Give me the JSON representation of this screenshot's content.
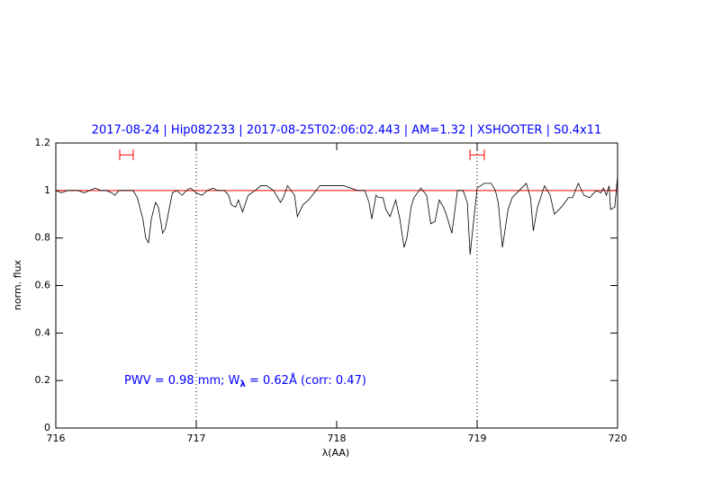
{
  "chart_data": {
    "type": "line",
    "title": "2017-08-24 | Hip082233 | 2017-08-25T02:06:02.443 | AM=1.32 | XSHOOTER | S0.4x11",
    "xlabel": "λ(AA)",
    "ylabel": "norm. flux",
    "annotation": [
      "PWV = 0.98 mm; W",
      "λ",
      " = 0.62Å (corr: 0.47)"
    ],
    "title_color": "#0000ff",
    "x": [
      716.0,
      716.04,
      716.08,
      716.12,
      716.16,
      716.2,
      716.24,
      716.28,
      716.32,
      716.36,
      716.4,
      716.42,
      716.45,
      716.5,
      716.55,
      716.58,
      716.62,
      716.64,
      716.66,
      716.68,
      716.71,
      716.73,
      716.75,
      716.76,
      716.78,
      716.8,
      716.83,
      716.86,
      716.9,
      716.93,
      716.96,
      717.0,
      717.04,
      717.08,
      717.12,
      717.15,
      717.2,
      717.23,
      717.25,
      717.28,
      717.3,
      717.33,
      717.37,
      717.42,
      717.46,
      717.5,
      717.55,
      717.58,
      717.6,
      717.62,
      717.65,
      717.7,
      717.72,
      717.76,
      717.8,
      717.84,
      717.88,
      717.95,
      718.0,
      718.05,
      718.1,
      718.15,
      718.2,
      718.23,
      718.25,
      718.28,
      718.3,
      718.33,
      718.35,
      718.38,
      718.42,
      718.45,
      718.48,
      718.5,
      718.53,
      718.55,
      718.6,
      718.64,
      718.67,
      718.7,
      718.73,
      718.76,
      718.78,
      718.82,
      718.86,
      718.9,
      718.93,
      718.95,
      718.98,
      719.0,
      719.05,
      719.1,
      719.13,
      719.15,
      719.18,
      719.22,
      719.25,
      719.3,
      719.35,
      719.38,
      719.4,
      719.43,
      719.48,
      719.52,
      719.55,
      719.6,
      719.65,
      719.68,
      719.72,
      719.76,
      719.8,
      719.85,
      719.88,
      719.9,
      719.92,
      719.94,
      719.95,
      719.98,
      720.0
    ],
    "values": [
      1.0,
      0.99,
      1.0,
      1.0,
      1.0,
      0.99,
      1.0,
      1.01,
      1.0,
      1.0,
      0.99,
      0.98,
      1.0,
      1.0,
      1.0,
      0.97,
      0.88,
      0.8,
      0.78,
      0.88,
      0.95,
      0.93,
      0.86,
      0.82,
      0.84,
      0.9,
      0.99,
      1.0,
      0.98,
      1.0,
      1.01,
      0.99,
      0.98,
      1.0,
      1.01,
      1.0,
      1.0,
      0.98,
      0.94,
      0.93,
      0.96,
      0.91,
      0.98,
      1.0,
      1.02,
      1.02,
      1.0,
      0.97,
      0.95,
      0.97,
      1.02,
      0.98,
      0.89,
      0.94,
      0.96,
      0.99,
      1.02,
      1.02,
      1.02,
      1.02,
      1.01,
      1.0,
      1.0,
      0.95,
      0.88,
      0.98,
      0.97,
      0.97,
      0.92,
      0.89,
      0.96,
      0.88,
      0.76,
      0.8,
      0.93,
      0.97,
      1.01,
      0.98,
      0.86,
      0.87,
      0.96,
      0.93,
      0.9,
      0.82,
      1.0,
      1.0,
      0.95,
      0.73,
      0.9,
      1.01,
      1.03,
      1.03,
      1.0,
      0.95,
      0.76,
      0.92,
      0.97,
      1.0,
      1.03,
      0.97,
      0.83,
      0.93,
      1.02,
      0.98,
      0.9,
      0.93,
      0.97,
      0.97,
      1.03,
      0.98,
      0.97,
      1.0,
      0.99,
      1.01,
      0.98,
      1.02,
      0.92,
      0.93,
      1.06
    ],
    "color": "#000000",
    "ref_line": 1,
    "ref_color": "#ff0000",
    "vlines": [
      717,
      719
    ],
    "intervals": [
      [
        716.455,
        716.551
      ],
      [
        718.949,
        719.051
      ]
    ],
    "interval_y": 1.15,
    "xlim": [
      716,
      720
    ],
    "ylim": [
      0,
      1.2
    ],
    "xticks": [
      716,
      717,
      718,
      719,
      720
    ],
    "yticks": [
      0,
      0.2,
      0.4,
      0.6,
      0.8,
      1,
      1.2
    ],
    "grid": false
  }
}
